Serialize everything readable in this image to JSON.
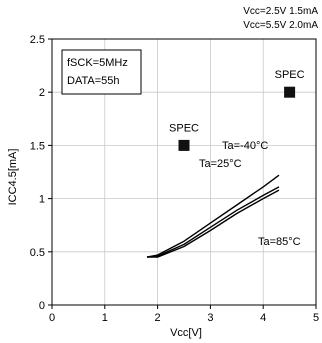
{
  "chart_data": {
    "type": "line",
    "xlabel": "Vcc[V]",
    "ylabel": "ICC4.5[mA]",
    "xlim": [
      0,
      5
    ],
    "ylim": [
      0,
      2.5
    ],
    "xticks": [
      0,
      1,
      2,
      3,
      4,
      5
    ],
    "yticks": [
      0,
      0.5,
      1,
      1.5,
      2,
      2.5
    ],
    "xtick_labels": [
      "0",
      "1",
      "2",
      "3",
      "4",
      "5"
    ],
    "ytick_labels": [
      "0",
      "0.5",
      "1",
      "1.5",
      "2",
      "2.5"
    ],
    "grid": true,
    "conditions": [
      "fSCK=5MHz",
      "DATA=55h"
    ],
    "spec_notes": [
      "Vcc=2.5V 1.5mA",
      "Vcc=5.5V 2.0mA"
    ],
    "series": [
      {
        "name": "Ta=-40°C",
        "x": [
          1.8,
          2.0,
          2.5,
          3.0,
          3.5,
          4.0,
          4.3
        ],
        "y": [
          0.45,
          0.47,
          0.6,
          0.77,
          0.94,
          1.11,
          1.22
        ]
      },
      {
        "name": "Ta=25°C",
        "x": [
          1.8,
          2.0,
          2.5,
          3.0,
          3.5,
          4.0,
          4.3
        ],
        "y": [
          0.45,
          0.46,
          0.57,
          0.73,
          0.89,
          1.03,
          1.11
        ]
      },
      {
        "name": "Ta=85°C",
        "x": [
          1.8,
          2.0,
          2.5,
          3.0,
          3.5,
          4.0,
          4.3
        ],
        "y": [
          0.45,
          0.45,
          0.55,
          0.7,
          0.86,
          1.0,
          1.08
        ]
      }
    ],
    "spec_points": [
      {
        "label": "SPEC",
        "x": 2.5,
        "y": 1.5
      },
      {
        "label": "SPEC",
        "x": 4.5,
        "y": 2.0
      }
    ]
  }
}
